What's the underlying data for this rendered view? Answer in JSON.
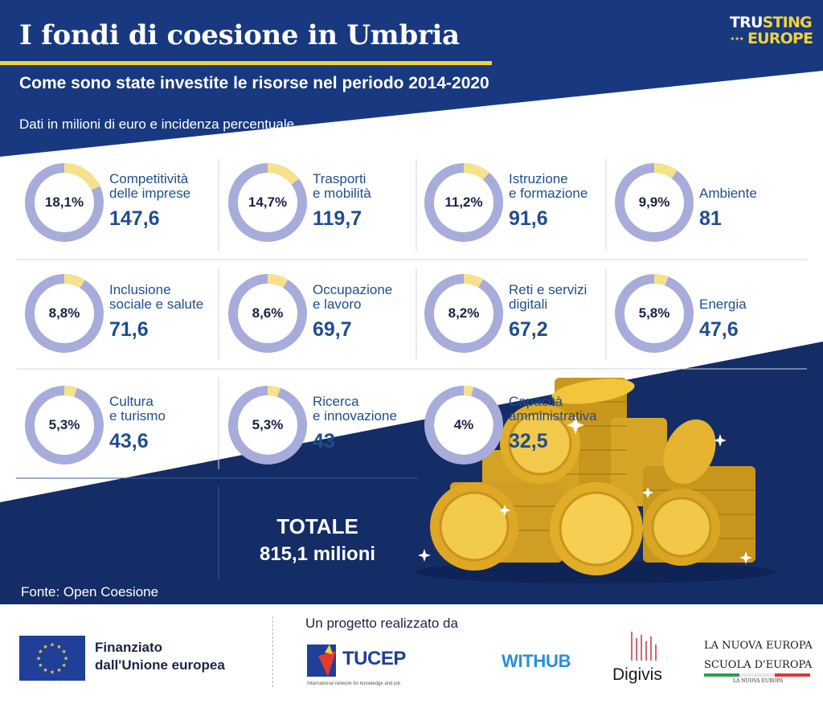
{
  "header": {
    "title": "I fondi di coesione in Umbria",
    "subtitle": "Come sono state investite le risorse nel periodo 2014-2020",
    "unit_note": "Dati in milioni di euro e incidenza percentuale",
    "brand_line1_white": "TRU",
    "brand_line1_yellow": "STING",
    "brand_line2_yellow": "EUROPE"
  },
  "colors": {
    "navy": "#18397f",
    "dark_navy": "#142d66",
    "yellow": "#f2d23d",
    "ring": "#a8acdb",
    "ring_highlight": "#f7e28c",
    "text_blue": "#1f4e8f"
  },
  "chart_data": {
    "type": "pie",
    "title": "I fondi di coesione in Umbria",
    "subtitle": "Come sono state investite le risorse nel periodo 2014-2020",
    "unit": "Dati in milioni di euro e incidenza percentuale",
    "categories": [
      {
        "label": "Competitività\ndelle imprese",
        "value": 147.6,
        "value_label": "147,6",
        "percent": 18.1,
        "percent_label": "18,1%"
      },
      {
        "label": "Trasporti\ne mobilità",
        "value": 119.7,
        "value_label": "119,7",
        "percent": 14.7,
        "percent_label": "14,7%"
      },
      {
        "label": "Istruzione\ne formazione",
        "value": 91.6,
        "value_label": "91,6",
        "percent": 11.2,
        "percent_label": "11,2%"
      },
      {
        "label": "Ambiente",
        "value": 81,
        "value_label": "81",
        "percent": 9.9,
        "percent_label": "9,9%"
      },
      {
        "label": "Inclusione\nsociale e salute",
        "value": 71.6,
        "value_label": "71,6",
        "percent": 8.8,
        "percent_label": "8,8%"
      },
      {
        "label": "Occupazione\ne lavoro",
        "value": 69.7,
        "value_label": "69,7",
        "percent": 8.6,
        "percent_label": "8,6%"
      },
      {
        "label": "Reti e servizi\ndigitali",
        "value": 67.2,
        "value_label": "67,2",
        "percent": 8.2,
        "percent_label": "8,2%"
      },
      {
        "label": "Energia",
        "value": 47.6,
        "value_label": "47,6",
        "percent": 5.8,
        "percent_label": "5,8%"
      },
      {
        "label": "Cultura\ne turismo",
        "value": 43.6,
        "value_label": "43,6",
        "percent": 5.3,
        "percent_label": "5,3%"
      },
      {
        "label": "Ricerca\ne innovazione",
        "value": 43,
        "value_label": "43",
        "percent": 5.3,
        "percent_label": "5,3%"
      },
      {
        "label": "Capacità\namministrativa",
        "value": 32.5,
        "value_label": "32,5",
        "percent": 4,
        "percent_label": "4%"
      }
    ],
    "total_label": "TOTALE",
    "total_value": "815,1 milioni",
    "source": "Fonte: Open Coesione"
  },
  "footer": {
    "eu_text": "Finanziato\ndall'Unione europea",
    "project_label": "Un progetto realizzato da",
    "partners": {
      "tucep": "TUCEP",
      "tucep_tagline": "International network for knowledge and job",
      "withub": "WITHUB",
      "digivis": "Digivis",
      "nuova_europa": "LA NUOVA EUROPA",
      "scuola": "SCUOLA D'EUROPA",
      "nuova_small": "LA NUOVA EUROPA"
    }
  }
}
